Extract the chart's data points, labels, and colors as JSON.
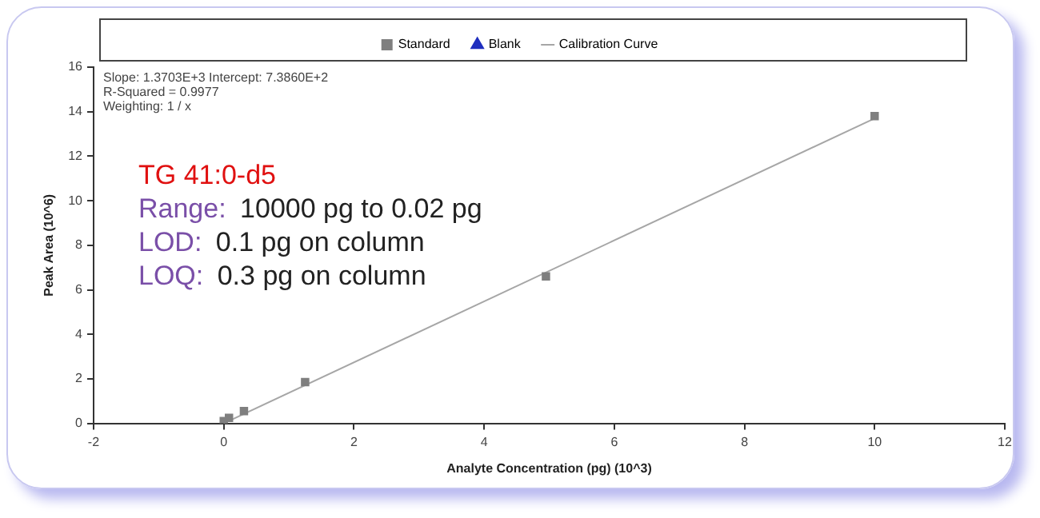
{
  "chart_data": {
    "type": "scatter",
    "xlabel": "Analyte Concentration (pg) (10^3)",
    "ylabel": "Peak Area (10^6)",
    "xlim": [
      -2,
      12
    ],
    "xticks": [
      -2,
      0,
      2,
      4,
      6,
      8,
      10,
      12
    ],
    "ylim": [
      0,
      16
    ],
    "yticks": [
      0,
      2,
      4,
      6,
      8,
      10,
      12,
      14,
      16
    ],
    "grid": false,
    "legend": "top",
    "series": [
      {
        "name": "Standard",
        "type": "scatter",
        "marker": "square",
        "color": "#7f7f7f",
        "x": [
          0,
          0.08,
          0.31,
          1.25,
          4.95,
          10
        ],
        "values": [
          0.1,
          0.25,
          0.55,
          1.85,
          6.6,
          13.8
        ]
      },
      {
        "name": "Blank",
        "type": "scatter",
        "marker": "triangle",
        "color": "#1f2fbf"
      },
      {
        "name": "Calibration Curve",
        "type": "line",
        "marker": "none",
        "color": "#a6a6a6",
        "x": [
          0,
          10
        ],
        "values": [
          0,
          13.7
        ]
      }
    ],
    "annotations": [
      "Slope: 1.3703E+3 Intercept: 7.3860E+2",
      "R-Squared = 0.9977",
      "Weighting: 1 / x",
      "TG 41:0-d5",
      "Range: 10000 pg to 0.02 pg",
      "LOD: 0.1 pg on column",
      "LOQ: 0.3 pg on column"
    ]
  }
}
